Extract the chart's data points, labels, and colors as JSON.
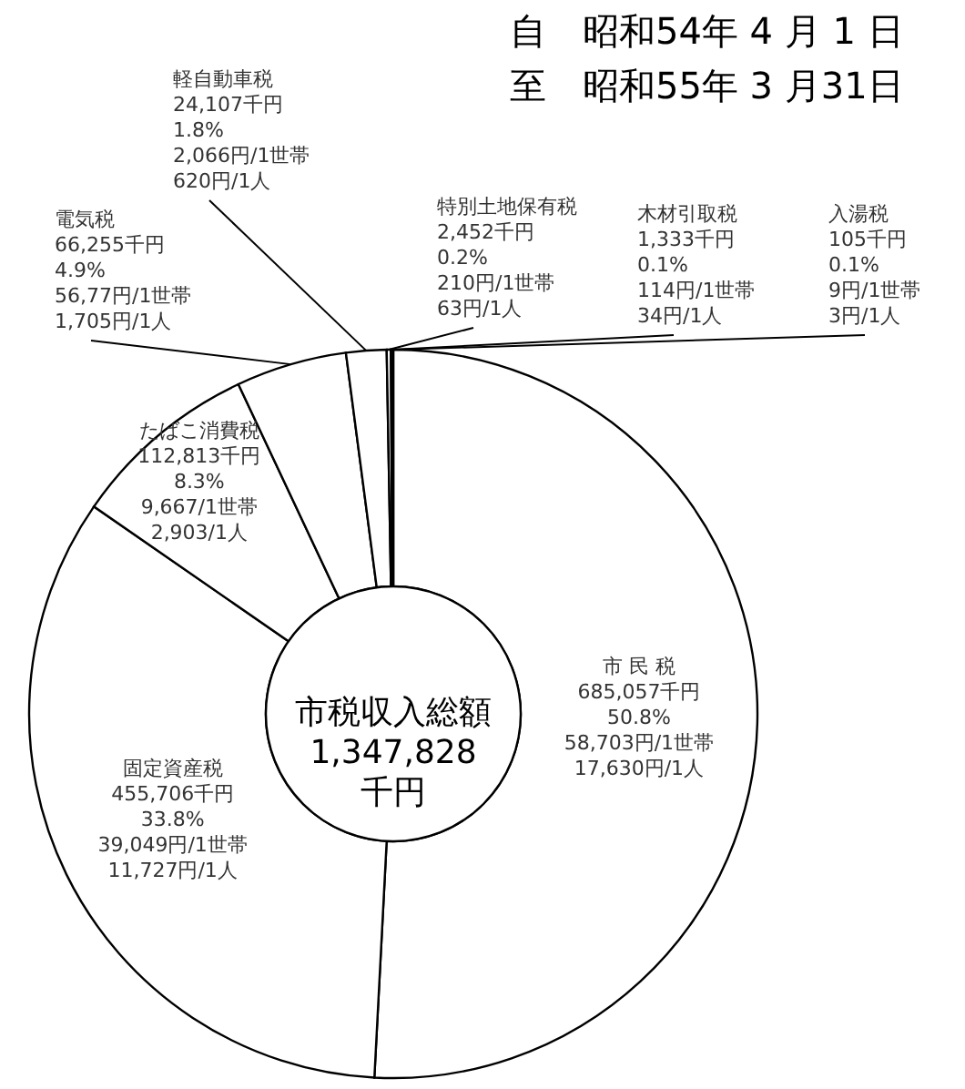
{
  "chart_data": {
    "type": "donut",
    "title": "自　昭和54年 4 月 1 日",
    "subtitle": "至　昭和55年 3 月31日",
    "categories": [
      "市 民 税",
      "固定資産税",
      "たばこ消費税",
      "電気税",
      "軽自動車税",
      "特別土地保有税",
      "木材引取税",
      "入湯税"
    ],
    "values": [
      685057,
      455706,
      112813,
      66255,
      24107,
      2452,
      1333,
      105
    ],
    "colors": [
      "#ffffff",
      "#ffffff",
      "#ffffff",
      "#ffffff",
      "#ffffff",
      "#ffffff",
      "#ffffff",
      "#ffffff"
    ],
    "value_labels": [
      "685,057千円\n50.8%\n58,703円/1世帯\n17,630円/1人",
      "455,706千円\n33.8%\n39,049円/1世帯\n11,727円/1人",
      "112,813千円\n8.3%\n9,667/1世帯\n2,903/1人",
      "66,255千円\n4.9%\n56,77円/1世帯\n1,705円/1人",
      "24,107千円\n1.8%\n2,066円/1世帯\n620円/1人",
      "2,452千円\n0.2%\n210円/1世帯\n63円/1人",
      "1,333千円\n0.1%\n114円/1世帯\n34円/1人",
      "105千円\n0.1%\n9円/1世帯\n3円/1人"
    ],
    "annotations": [
      "市税収入総額\n1,347,828\n千円"
    ]
  }
}
